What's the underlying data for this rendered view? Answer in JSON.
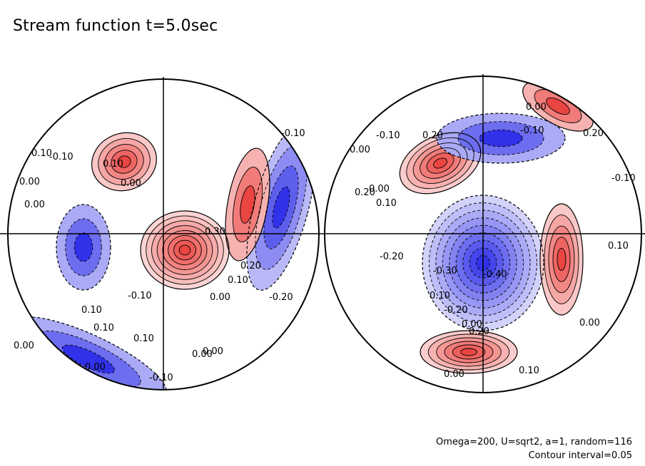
{
  "title": "Stream function t=5.0sec",
  "annotation": {
    "params": "Omega=200, U=sqrt2, a=1, random=116",
    "interval": "Contour interval=0.05"
  },
  "colors": {
    "positive": "#e8302c",
    "negative": "#1a1ae6",
    "background": "#ffffff",
    "contour": "#000000"
  },
  "chart_data": {
    "type": "heatmap",
    "projection": "orthographic, two hemispheres",
    "contour_interval": 0.05,
    "panels": [
      {
        "name": "left hemisphere",
        "labels": [
          "0.00",
          "0.10",
          "-0.10",
          "0.00",
          "-0.10",
          "0.10",
          "0.00",
          "0.30",
          "0.20",
          "0.10",
          "0.00",
          "-0.20",
          "-0.10",
          "0.10",
          "0.00",
          "0.10",
          "0.00",
          "-0.10",
          "0.00",
          "0.10",
          "0.00"
        ],
        "extrema": [
          {
            "sign": "positive",
            "value": 0.4,
            "location": "center"
          },
          {
            "sign": "positive",
            "value": 0.25,
            "location": "upper-left"
          },
          {
            "sign": "negative",
            "value": -0.2,
            "location": "right edge"
          },
          {
            "sign": "negative",
            "value": -0.15,
            "location": "lower-left edge"
          },
          {
            "sign": "negative",
            "value": -0.15,
            "location": "left"
          },
          {
            "sign": "positive",
            "value": 0.15,
            "location": "right arm"
          }
        ]
      },
      {
        "name": "right hemisphere",
        "labels": [
          "0.00",
          "-0.10",
          "0.20",
          "-0.10",
          "0.00",
          "0.20",
          "0.10",
          "0.00",
          "-0.20",
          "-0.30",
          "-0.40",
          "-0.20",
          "0.10",
          "0.20",
          "0.00",
          "0.10",
          "0.00",
          "0.10",
          "-0.10",
          "0.20",
          "0.00"
        ],
        "extrema": [
          {
            "sign": "negative",
            "value": -0.45,
            "location": "center"
          },
          {
            "sign": "positive",
            "value": 0.3,
            "location": "upper-left"
          },
          {
            "sign": "positive",
            "value": 0.3,
            "location": "bottom"
          },
          {
            "sign": "positive",
            "value": 0.25,
            "location": "right"
          },
          {
            "sign": "positive",
            "value": 0.15,
            "location": "top-right edge"
          },
          {
            "sign": "negative",
            "value": -0.15,
            "location": "top"
          }
        ]
      }
    ]
  }
}
